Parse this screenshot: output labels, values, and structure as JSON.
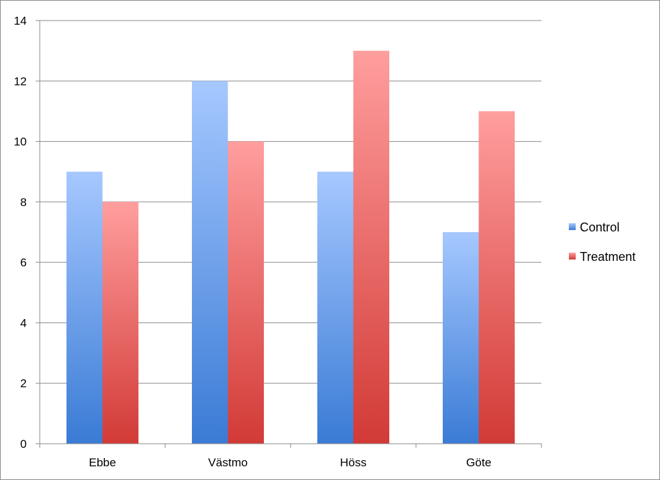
{
  "chart_data": {
    "type": "bar",
    "title": "",
    "xlabel": "",
    "ylabel": "",
    "categories": [
      "Ebbe",
      "Västmo",
      "Höss",
      "Göte"
    ],
    "series": [
      {
        "name": "Control",
        "values": [
          9,
          12,
          9,
          7
        ],
        "color_top": "#a6c8ff",
        "color_bottom": "#3a7bd5"
      },
      {
        "name": "Treatment",
        "values": [
          8,
          10,
          13,
          11
        ],
        "color_top": "#ff9e9e",
        "color_bottom": "#d23a36"
      }
    ],
    "ylim": [
      0,
      14
    ],
    "yticks": [
      "0",
      "2",
      "4",
      "6",
      "8",
      "10",
      "12",
      "14"
    ],
    "grid": true,
    "legend": "right"
  }
}
